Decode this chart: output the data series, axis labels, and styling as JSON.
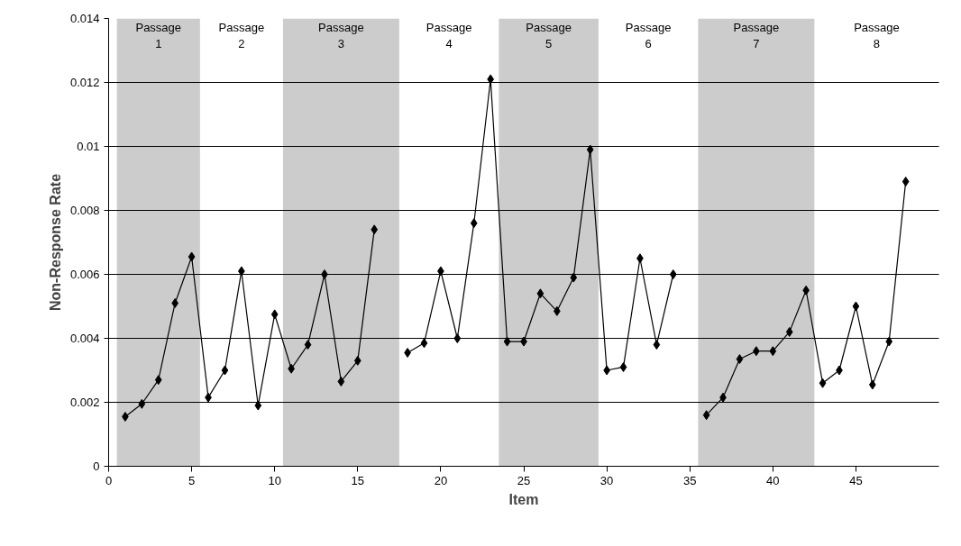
{
  "chart_data": {
    "type": "line",
    "xlabel": "Item",
    "ylabel": "Non-Response Rate",
    "x": [
      1,
      2,
      3,
      4,
      5,
      6,
      7,
      8,
      9,
      10,
      11,
      12,
      13,
      14,
      15,
      16,
      17,
      18,
      19,
      20,
      21,
      22,
      23,
      24,
      25,
      26,
      27,
      28,
      29,
      30,
      31,
      32,
      33,
      34,
      35,
      36,
      37,
      38,
      39,
      40,
      41,
      42,
      43,
      44,
      45,
      46,
      47,
      48
    ],
    "series": [
      {
        "color": "#000000",
        "values": [
          0.00155,
          0.00195,
          0.0027,
          0.0051,
          0.00655,
          0.00215,
          0.003,
          0.0061,
          0.0019,
          0.00475,
          0.00305,
          0.0038,
          0.006,
          0.00265,
          0.0033,
          0.0074,
          null,
          0.00355,
          0.00385,
          0.0061,
          0.004,
          0.0076,
          0.0121,
          0.0039,
          0.0039,
          0.0054,
          0.00485,
          0.0059,
          0.0099,
          0.003,
          0.0031,
          0.0065,
          0.0038,
          0.006,
          null,
          0.0016,
          0.00215,
          0.00335,
          0.0036,
          0.0036,
          0.0042,
          0.0055,
          0.0026,
          0.003,
          0.005,
          0.00255,
          0.0039,
          0.0089
        ]
      }
    ],
    "xlim": [
      0,
      50
    ],
    "xticks": [
      0,
      5,
      10,
      15,
      20,
      25,
      30,
      35,
      40,
      45
    ],
    "ylim": [
      0,
      0.014
    ],
    "yticks": [
      0,
      0.002,
      0.004,
      0.006,
      0.008,
      0.01,
      0.012,
      0.014
    ],
    "bands": [
      {
        "axis": "x",
        "from": 0.5,
        "to": 5.5,
        "label": "Passage\n1",
        "color": "#cccccc"
      },
      {
        "axis": "x",
        "from": 10.5,
        "to": 17.5,
        "label": "Passage\n3",
        "color": "#cccccc"
      },
      {
        "axis": "x",
        "from": 23.5,
        "to": 29.5,
        "label": "Passage\n5",
        "color": "#cccccc"
      },
      {
        "axis": "x",
        "from": 35.5,
        "to": 42.5,
        "label": "Passage\n7",
        "color": "#cccccc"
      }
    ],
    "annotations": [
      "Passage\n2",
      "Passage\n4",
      "Passage\n6",
      "Passage\n8"
    ],
    "grid": "y",
    "marker": "diamond",
    "line_style": "solid"
  }
}
